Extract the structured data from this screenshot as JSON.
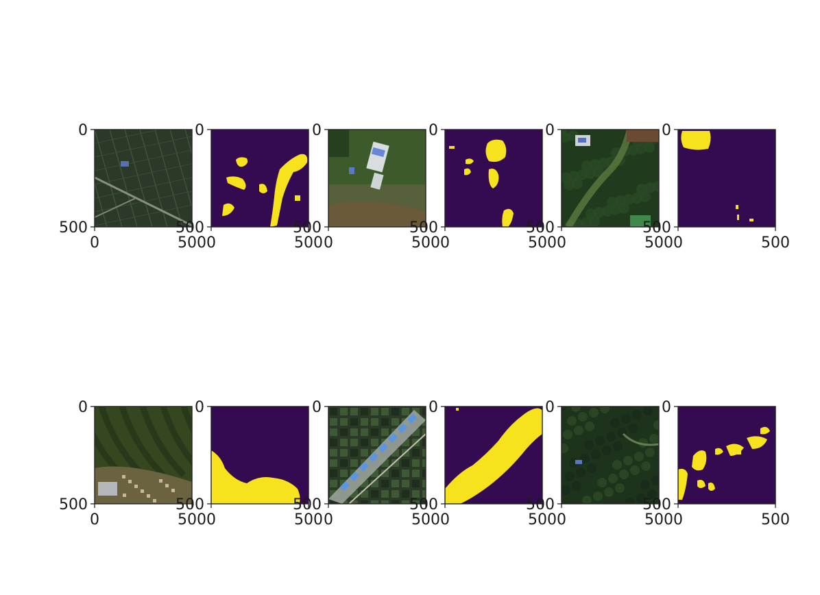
{
  "figure": {
    "rows": [
      {
        "panels": [
          {
            "kind": "satellite-image",
            "scene": "farmland-fields-with-road",
            "xticks": [
              "0",
              "500"
            ],
            "yticks": [
              "0",
              "500"
            ]
          },
          {
            "kind": "segmentation-mask",
            "scene": "mask-farmland",
            "xticks": [
              "0",
              "500"
            ],
            "yticks": [
              "0",
              "500"
            ]
          },
          {
            "kind": "satellite-image",
            "scene": "greenhouses-and-fields",
            "xticks": [
              "0",
              "500"
            ],
            "yticks": [
              "0",
              "500"
            ]
          },
          {
            "kind": "segmentation-mask",
            "scene": "mask-greenhouses",
            "xticks": [
              "0",
              "500"
            ],
            "yticks": [
              "0",
              "500"
            ]
          },
          {
            "kind": "satellite-image",
            "scene": "forest-with-clearing",
            "xticks": [
              "0",
              "500"
            ],
            "yticks": [
              "0",
              "500"
            ]
          },
          {
            "kind": "segmentation-mask",
            "scene": "mask-forest",
            "xticks": [
              "0",
              "500"
            ],
            "yticks": [
              "0",
              "500"
            ]
          }
        ]
      },
      {
        "panels": [
          {
            "kind": "satellite-image",
            "scene": "hills-and-village",
            "xticks": [
              "0",
              "500"
            ],
            "yticks": [
              "0",
              "500"
            ]
          },
          {
            "kind": "segmentation-mask",
            "scene": "mask-village",
            "xticks": [
              "0",
              "500"
            ],
            "yticks": [
              "0",
              "500"
            ]
          },
          {
            "kind": "satellite-image",
            "scene": "diagonal-built-up-strip",
            "xticks": [
              "0",
              "500"
            ],
            "yticks": [
              "0",
              "500"
            ]
          },
          {
            "kind": "segmentation-mask",
            "scene": "mask-diagonal-strip",
            "xticks": [
              "0",
              "500"
            ],
            "yticks": [
              "0",
              "500"
            ]
          },
          {
            "kind": "satellite-image",
            "scene": "dense-forest-hills",
            "xticks": [
              "0",
              "500"
            ],
            "yticks": [
              "0",
              "500"
            ]
          },
          {
            "kind": "segmentation-mask",
            "scene": "mask-scattered-patches",
            "xticks": [
              "0",
              "500"
            ],
            "yticks": [
              "0",
              "500"
            ]
          }
        ]
      }
    ],
    "colors": {
      "mask_background": "#340a50",
      "mask_foreground": "#f7e21e",
      "axis": "#222222"
    }
  }
}
